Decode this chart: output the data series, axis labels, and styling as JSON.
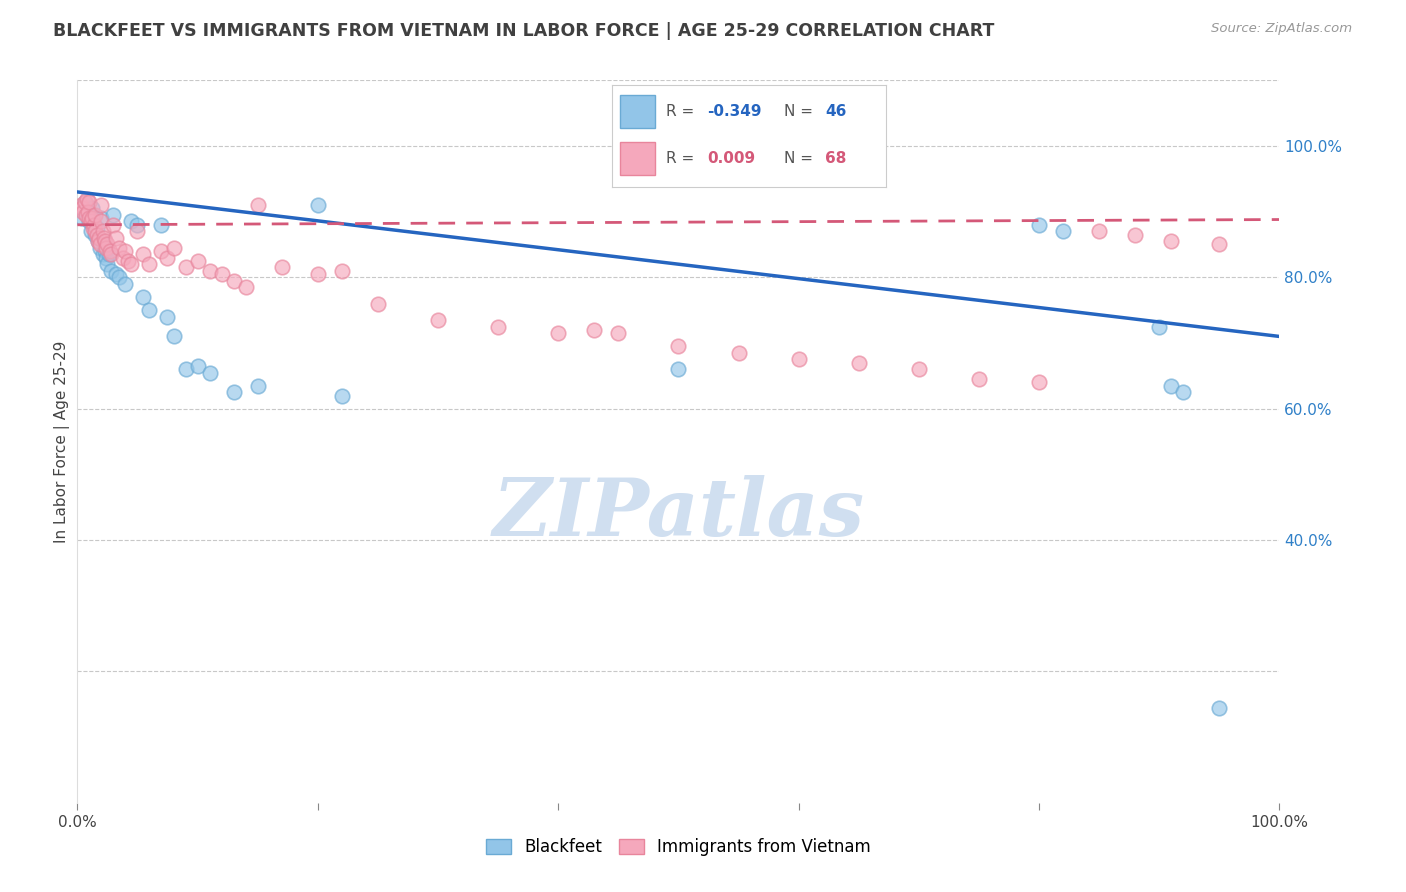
{
  "title": "BLACKFEET VS IMMIGRANTS FROM VIETNAM IN LABOR FORCE | AGE 25-29 CORRELATION CHART",
  "source": "Source: ZipAtlas.com",
  "ylabel": "In Labor Force | Age 25-29",
  "blackfeet_R": -0.349,
  "blackfeet_N": 46,
  "vietnam_R": 0.009,
  "vietnam_N": 68,
  "blackfeet_color": "#92C5E8",
  "vietnam_color": "#F5A8BC",
  "blackfeet_edge_color": "#6AAAD4",
  "vietnam_edge_color": "#E8859C",
  "blackfeet_line_color": "#2565C0",
  "vietnam_line_color": "#D45878",
  "background_color": "#FFFFFF",
  "grid_color": "#C8C8C8",
  "watermark_color": "#D0DFF0",
  "right_axis_color": "#3080C8",
  "title_color": "#404040",
  "xlim": [
    0,
    100
  ],
  "ylim": [
    0,
    110
  ],
  "yticks": [
    20,
    40,
    60,
    80,
    100
  ],
  "ytick_labels": [
    "",
    "40.0%",
    "60.0%",
    "80.0%",
    "100.0%"
  ],
  "xtick_labels": [
    "0.0%",
    "",
    "",
    "",
    "",
    "100.0%"
  ],
  "blackfeet_line_x0": 0,
  "blackfeet_line_y0": 93.0,
  "blackfeet_line_x1": 100,
  "blackfeet_line_y1": 71.0,
  "vietnam_line_x0": 0,
  "vietnam_line_y0": 88.0,
  "vietnam_line_x1": 100,
  "vietnam_line_y1": 88.8,
  "blackfeet_x": [
    0.4,
    0.6,
    0.8,
    1.0,
    1.1,
    1.2,
    1.3,
    1.4,
    1.5,
    1.6,
    1.7,
    1.8,
    1.9,
    2.0,
    2.1,
    2.2,
    2.3,
    2.4,
    2.5,
    2.6,
    2.8,
    3.0,
    3.2,
    3.5,
    4.0,
    4.5,
    5.0,
    5.5,
    6.0,
    7.0,
    7.5,
    8.0,
    9.0,
    10.0,
    11.0,
    13.0,
    15.0,
    20.0,
    22.0,
    80.0,
    82.0,
    90.0,
    91.0,
    92.0,
    95.0,
    50.0
  ],
  "blackfeet_y": [
    89.0,
    91.5,
    90.0,
    88.5,
    87.0,
    90.5,
    89.5,
    88.0,
    86.5,
    87.5,
    85.5,
    86.0,
    84.5,
    89.0,
    83.5,
    85.0,
    84.0,
    83.0,
    82.0,
    83.5,
    81.0,
    89.5,
    80.5,
    80.0,
    79.0,
    88.5,
    88.0,
    77.0,
    75.0,
    88.0,
    74.0,
    71.0,
    66.0,
    66.5,
    65.5,
    62.5,
    63.5,
    91.0,
    62.0,
    88.0,
    87.0,
    72.5,
    63.5,
    62.5,
    14.5,
    66.0
  ],
  "vietnam_x": [
    0.3,
    0.4,
    0.5,
    0.6,
    0.7,
    0.8,
    0.9,
    1.0,
    1.0,
    1.1,
    1.2,
    1.3,
    1.4,
    1.5,
    1.5,
    1.6,
    1.7,
    1.8,
    1.9,
    2.0,
    2.0,
    2.1,
    2.2,
    2.3,
    2.4,
    2.5,
    2.7,
    2.8,
    3.0,
    3.2,
    3.5,
    3.8,
    4.0,
    4.2,
    4.5,
    5.0,
    5.5,
    6.0,
    7.0,
    7.5,
    8.0,
    9.0,
    10.0,
    11.0,
    12.0,
    13.0,
    14.0,
    15.0,
    17.0,
    20.0,
    22.0,
    25.0,
    30.0,
    35.0,
    40.0,
    43.0,
    45.0,
    50.0,
    55.0,
    60.0,
    65.0,
    70.0,
    75.0,
    80.0,
    85.0,
    88.0,
    91.0,
    95.0
  ],
  "vietnam_y": [
    91.0,
    90.5,
    90.0,
    91.5,
    89.5,
    92.0,
    90.0,
    89.0,
    91.5,
    88.5,
    89.0,
    87.5,
    88.0,
    87.0,
    89.5,
    86.5,
    85.5,
    86.0,
    85.0,
    88.5,
    91.0,
    87.0,
    86.0,
    85.5,
    84.5,
    85.0,
    84.0,
    83.5,
    88.0,
    86.0,
    84.5,
    83.0,
    84.0,
    82.5,
    82.0,
    87.0,
    83.5,
    82.0,
    84.0,
    83.0,
    84.5,
    81.5,
    82.5,
    81.0,
    80.5,
    79.5,
    78.5,
    91.0,
    81.5,
    80.5,
    81.0,
    76.0,
    73.5,
    72.5,
    71.5,
    72.0,
    71.5,
    69.5,
    68.5,
    67.5,
    67.0,
    66.0,
    64.5,
    64.0,
    87.0,
    86.5,
    85.5,
    85.0
  ]
}
